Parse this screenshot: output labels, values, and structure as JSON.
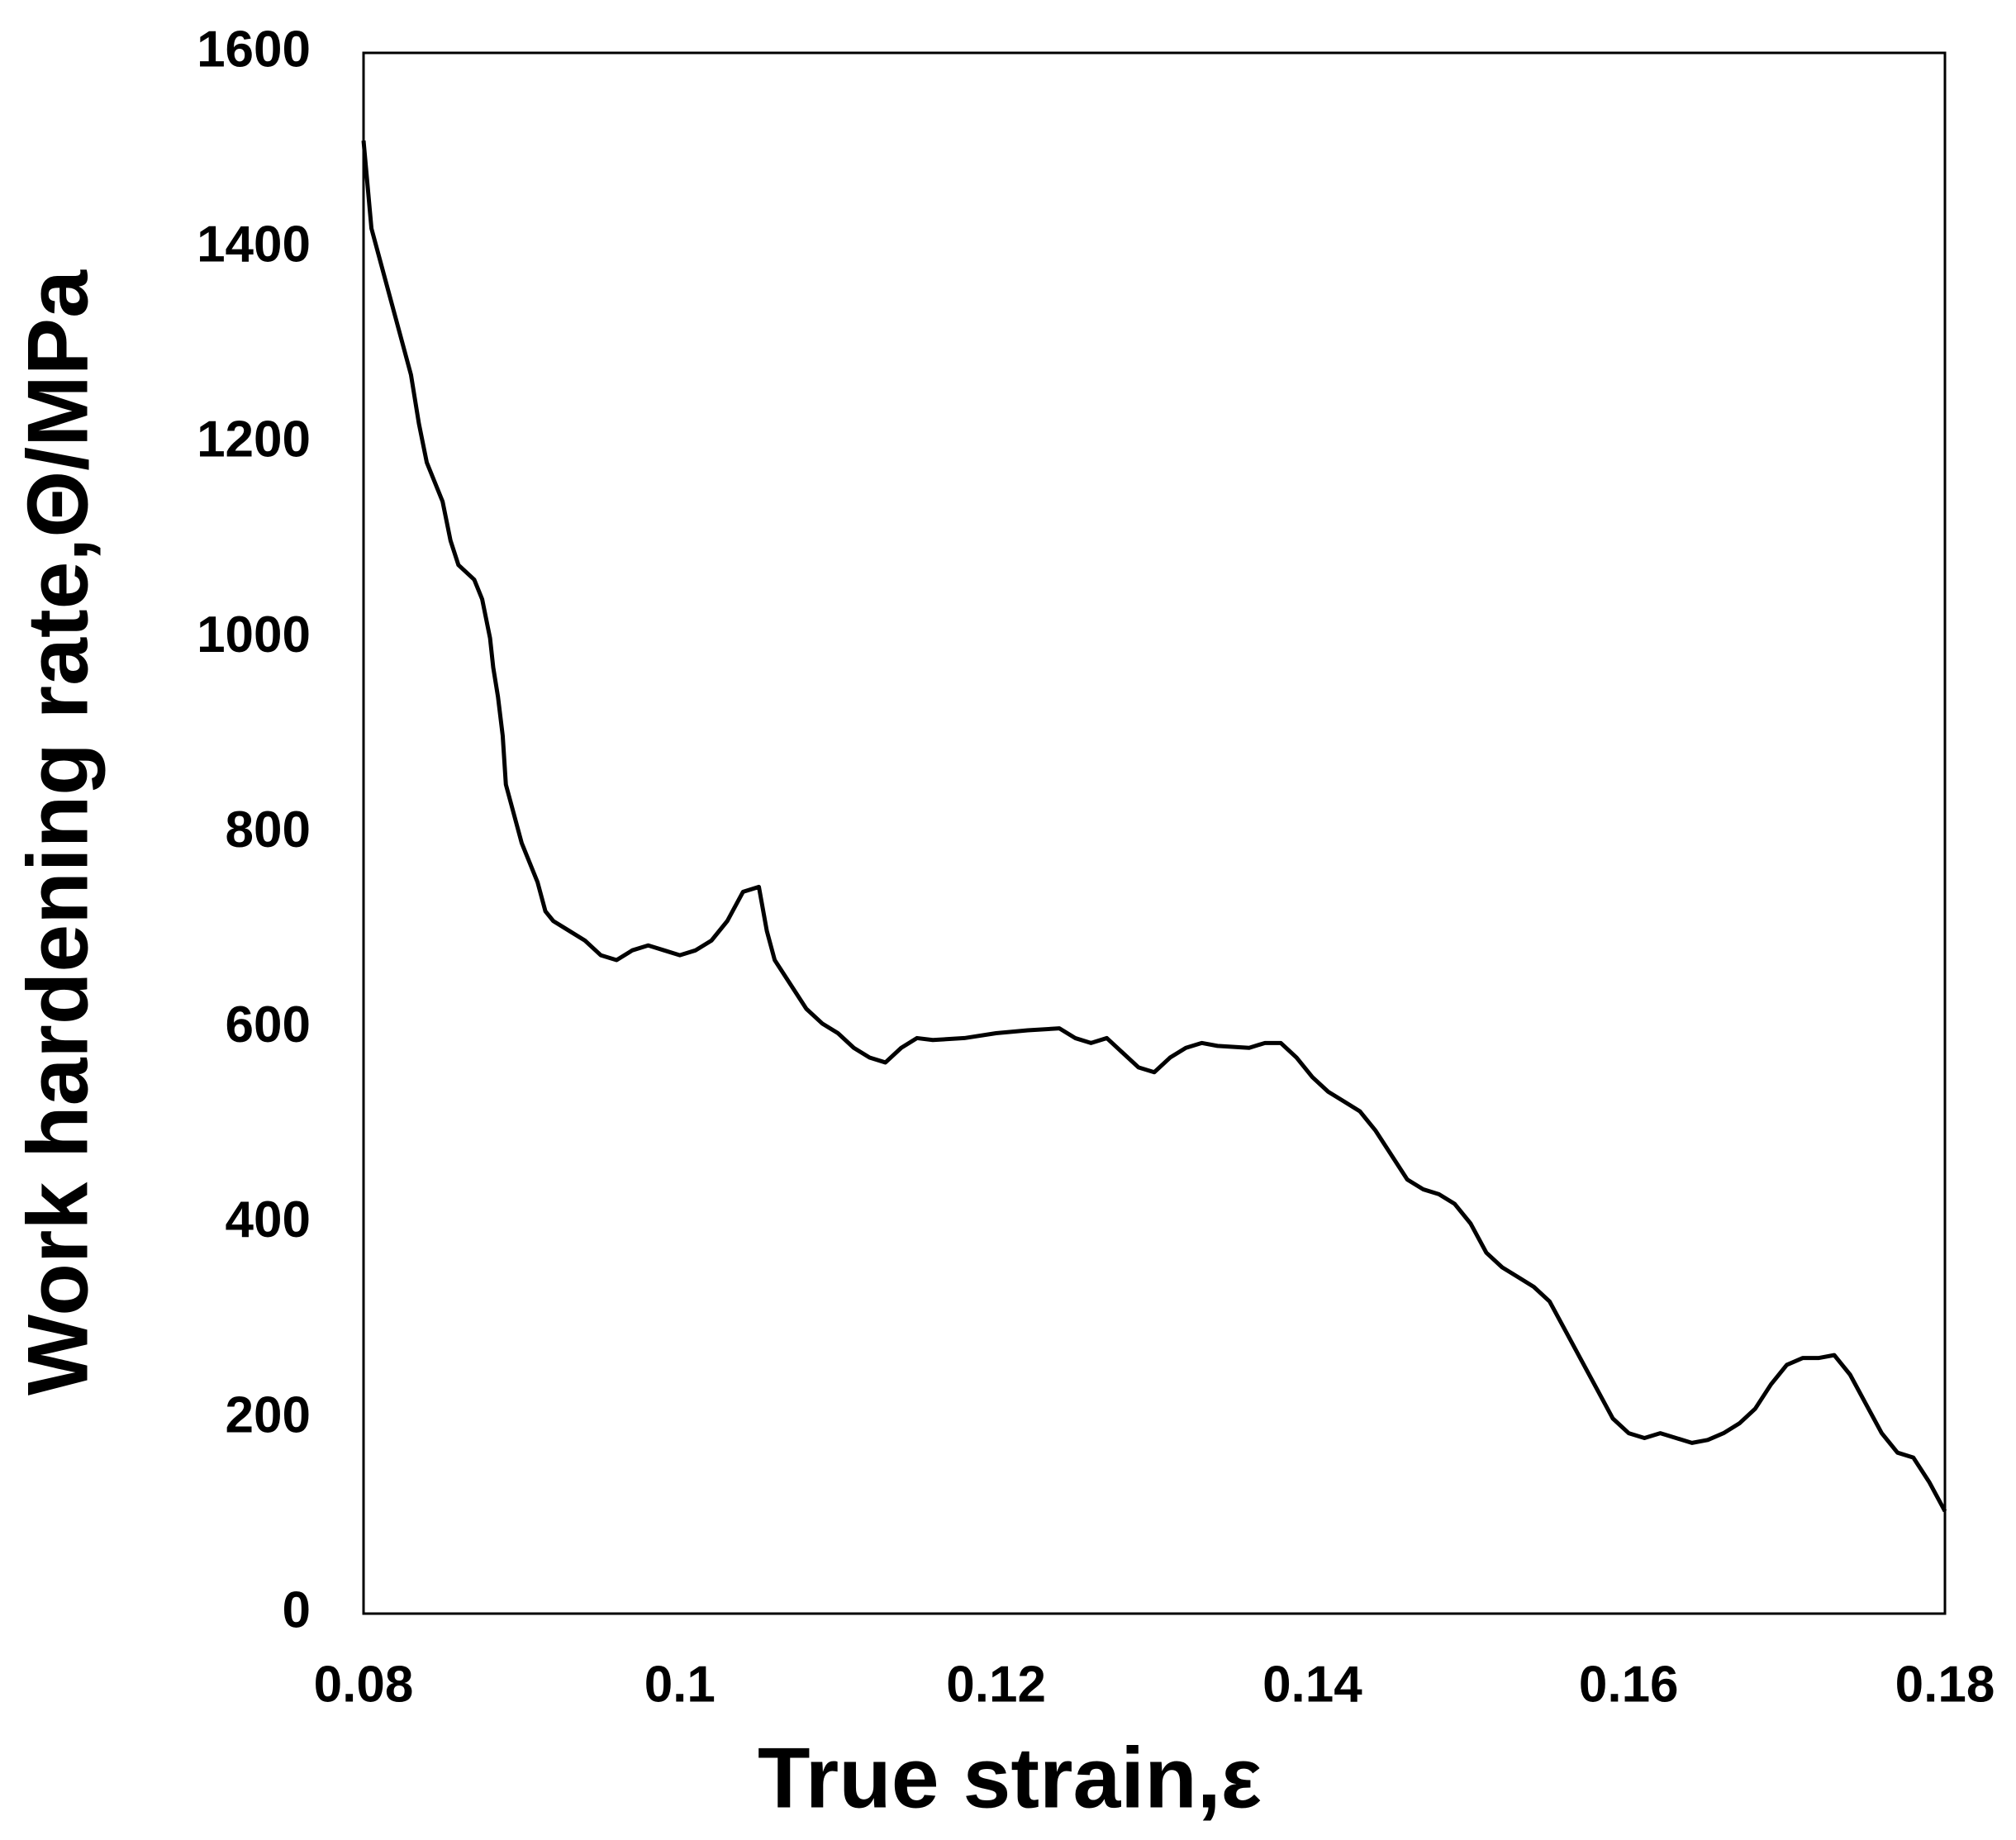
{
  "chart_data": {
    "type": "line",
    "xlabel": "True strain,ε",
    "ylabel": "Work hardening rate,Θ/MPa",
    "xlim": [
      0.08,
      0.18
    ],
    "xticks": [
      0.08,
      0.1,
      0.12,
      0.14,
      0.16,
      0.18
    ],
    "ylim": [
      0,
      1600
    ],
    "yticks": [
      0,
      200,
      400,
      600,
      800,
      1000,
      1200,
      1400,
      1600
    ],
    "grid": false,
    "series": [
      {
        "color": "#000000",
        "x": [
          0.08,
          0.0805,
          0.081,
          0.082,
          0.083,
          0.0835,
          0.084,
          0.085,
          0.0855,
          0.086,
          0.087,
          0.0875,
          0.088,
          0.0882,
          0.0885,
          0.0888,
          0.089,
          0.0895,
          0.09,
          0.091,
          0.0915,
          0.092,
          0.093,
          0.094,
          0.095,
          0.096,
          0.097,
          0.098,
          0.099,
          0.1,
          0.101,
          0.102,
          0.103,
          0.104,
          0.105,
          0.1055,
          0.106,
          0.107,
          0.108,
          0.109,
          0.11,
          0.111,
          0.112,
          0.113,
          0.114,
          0.115,
          0.116,
          0.118,
          0.12,
          0.122,
          0.124,
          0.125,
          0.126,
          0.127,
          0.128,
          0.129,
          0.13,
          0.131,
          0.132,
          0.133,
          0.134,
          0.136,
          0.137,
          0.138,
          0.139,
          0.14,
          0.141,
          0.142,
          0.143,
          0.144,
          0.145,
          0.146,
          0.147,
          0.148,
          0.149,
          0.15,
          0.151,
          0.152,
          0.153,
          0.154,
          0.155,
          0.156,
          0.157,
          0.158,
          0.159,
          0.16,
          0.161,
          0.162,
          0.163,
          0.164,
          0.165,
          0.166,
          0.167,
          0.168,
          0.169,
          0.17,
          0.171,
          0.172,
          0.173,
          0.174,
          0.175,
          0.176,
          0.177,
          0.178,
          0.179,
          0.18
        ],
        "values": [
          1510,
          1420,
          1390,
          1330,
          1270,
          1220,
          1180,
          1140,
          1100,
          1075,
          1060,
          1040,
          1000,
          970,
          940,
          900,
          850,
          820,
          790,
          750,
          720,
          710,
          700,
          690,
          675,
          670,
          680,
          685,
          680,
          675,
          680,
          690,
          710,
          740,
          745,
          700,
          670,
          645,
          620,
          605,
          595,
          580,
          570,
          565,
          580,
          590,
          588,
          590,
          595,
          598,
          600,
          590,
          585,
          590,
          575,
          560,
          555,
          570,
          580,
          585,
          582,
          580,
          585,
          585,
          570,
          550,
          535,
          525,
          515,
          495,
          470,
          445,
          435,
          430,
          420,
          400,
          370,
          355,
          345,
          335,
          320,
          290,
          260,
          230,
          200,
          185,
          180,
          185,
          180,
          175,
          178,
          185,
          195,
          210,
          235,
          255,
          262,
          262,
          265,
          245,
          215,
          185,
          165,
          160,
          135,
          105
        ]
      }
    ]
  }
}
